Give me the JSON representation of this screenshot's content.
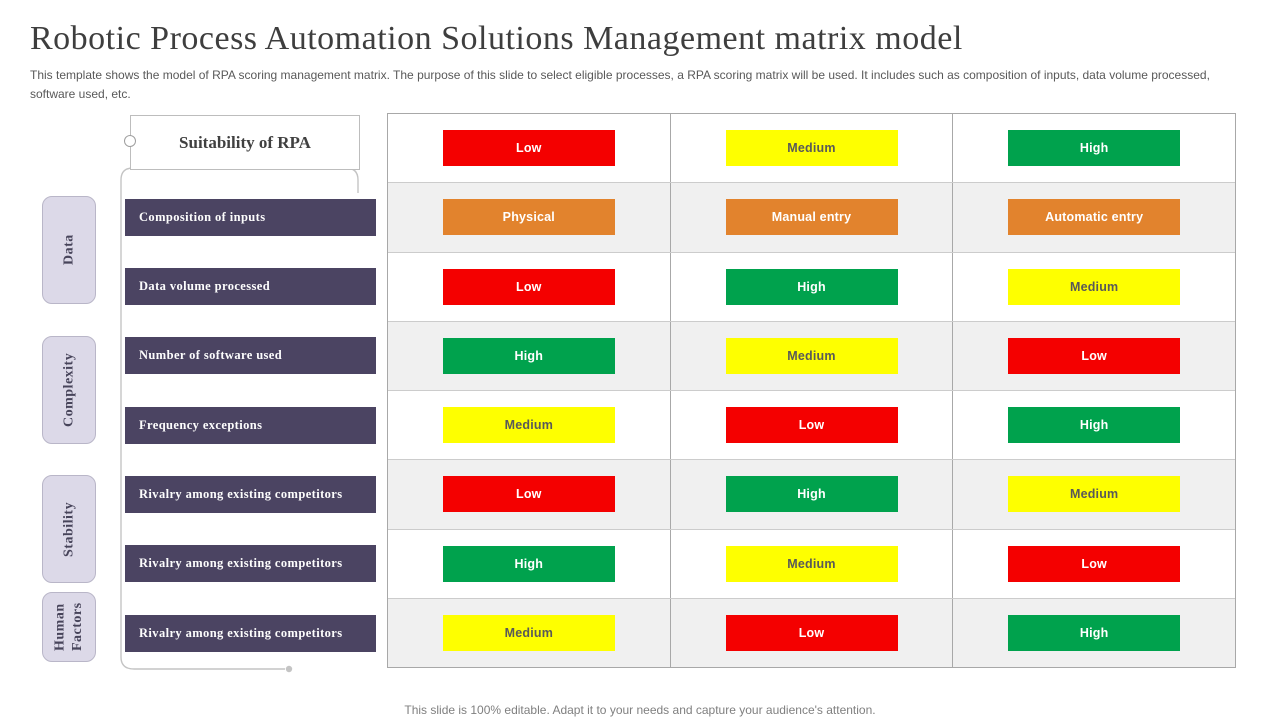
{
  "slide": {
    "title": "Robotic Process Automation Solutions Management matrix model",
    "subtitle": "This template shows the model of RPA scoring management matrix. The purpose of this slide to select eligible processes, a RPA scoring matrix will be used. It includes such as composition of inputs, data volume processed, software used, etc.",
    "footer": "This slide is 100% editable. Adapt it to your needs and capture your audience's attention."
  },
  "header_box": {
    "label": "Suitability of RPA"
  },
  "categories": [
    {
      "label": "Data"
    },
    {
      "label": "Complexity"
    },
    {
      "label": "Stability"
    },
    {
      "label": "Human Factors"
    }
  ],
  "colors": {
    "red": "#f40000",
    "yellow": "#feff00",
    "green": "#00a24d",
    "orange": "#e2832d",
    "label_bar": "#4b4462",
    "category_fill": "#dcd9e8",
    "row_stripe": "#f0f0f0",
    "yellow_text": "#595959"
  },
  "matrix": {
    "header": [
      {
        "text": "Low",
        "color": "red"
      },
      {
        "text": "Medium",
        "color": "yellow"
      },
      {
        "text": "High",
        "color": "green"
      }
    ],
    "rows": [
      {
        "label": "Composition of inputs",
        "cells": [
          {
            "text": "Physical",
            "color": "orange"
          },
          {
            "text": "Manual entry",
            "color": "orange"
          },
          {
            "text": "Automatic entry",
            "color": "orange"
          }
        ]
      },
      {
        "label": "Data volume processed",
        "cells": [
          {
            "text": "Low",
            "color": "red"
          },
          {
            "text": "High",
            "color": "green"
          },
          {
            "text": "Medium",
            "color": "yellow"
          }
        ]
      },
      {
        "label": "Number of software used",
        "cells": [
          {
            "text": "High",
            "color": "green"
          },
          {
            "text": "Medium",
            "color": "yellow"
          },
          {
            "text": "Low",
            "color": "red"
          }
        ]
      },
      {
        "label": "Frequency exceptions",
        "cells": [
          {
            "text": "Medium",
            "color": "yellow"
          },
          {
            "text": "Low",
            "color": "red"
          },
          {
            "text": "High",
            "color": "green"
          }
        ]
      },
      {
        "label": "Rivalry among existing competitors",
        "cells": [
          {
            "text": "Low",
            "color": "red"
          },
          {
            "text": "High",
            "color": "green"
          },
          {
            "text": "Medium",
            "color": "yellow"
          }
        ]
      },
      {
        "label": "Rivalry among existing competitors",
        "cells": [
          {
            "text": "High",
            "color": "green"
          },
          {
            "text": "Medium",
            "color": "yellow"
          },
          {
            "text": "Low",
            "color": "red"
          }
        ]
      },
      {
        "label": "Rivalry among existing competitors",
        "cells": [
          {
            "text": "Medium",
            "color": "yellow"
          },
          {
            "text": "Low",
            "color": "red"
          },
          {
            "text": "High",
            "color": "green"
          }
        ]
      }
    ]
  }
}
